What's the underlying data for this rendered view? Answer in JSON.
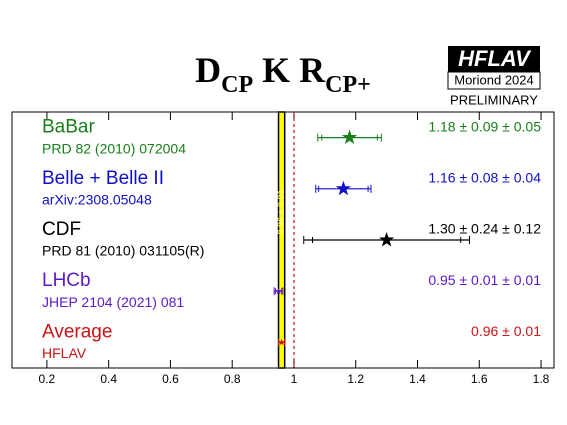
{
  "chart_data": {
    "type": "errorbar",
    "title": [
      {
        "text": "D",
        "sub": false
      },
      {
        "text": "CP",
        "sub": true
      },
      {
        "text": " K R",
        "sub": false
      },
      {
        "text": "CP+",
        "sub": true
      }
    ],
    "logo": {
      "name": "HFLAV",
      "conference": "Moriond 2024",
      "status": "PRELIMINARY"
    },
    "rows": [
      {
        "name": "BaBar",
        "reference": "PRD 82 (2010) 072004",
        "color": "#1a7f1a",
        "value": 1.18,
        "stat": 0.09,
        "syst": 0.05,
        "value_label": "1.18 ± 0.09 ± 0.05",
        "marker": "star"
      },
      {
        "name": "Belle + Belle II",
        "reference": "arXiv:2308.05048",
        "color": "#1010c8",
        "value": 1.16,
        "stat": 0.08,
        "syst": 0.04,
        "value_label": "1.16 ± 0.08 ± 0.04",
        "marker": "star"
      },
      {
        "name": "CDF",
        "reference": "PRD 81 (2010) 031105(R)",
        "color": "#000000",
        "value": 1.3,
        "stat": 0.24,
        "syst": 0.12,
        "value_label": "1.30 ± 0.24 ± 0.12",
        "marker": "star"
      },
      {
        "name": "LHCb",
        "reference": "JHEP 2104 (2021) 081",
        "color": "#5a1ac8",
        "value": 0.95,
        "stat": 0.01,
        "syst": 0.01,
        "value_label": "0.95 ± 0.01 ± 0.01",
        "marker": "small"
      },
      {
        "name": "Average",
        "reference": "HFLAV",
        "color": "#c81414",
        "value": 0.96,
        "stat": 0.01,
        "syst": null,
        "value_label": "0.96 ± 0.01",
        "marker": "small"
      }
    ],
    "band_color": "#ffff00",
    "reference_line": 1,
    "xlim": [
      0.087,
      1.842
    ],
    "xticks": [
      0.2,
      0.4,
      0.6,
      0.8,
      1,
      1.2,
      1.4,
      1.6,
      1.8
    ]
  }
}
